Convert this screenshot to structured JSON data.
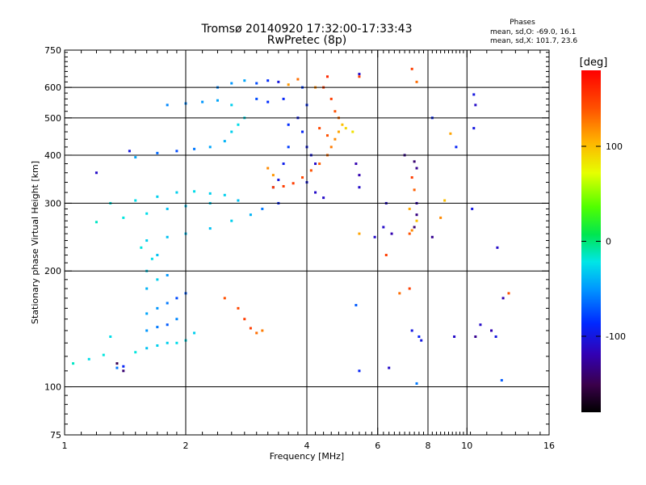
{
  "chart_data": {
    "type": "scatter",
    "title": "Tromsø 20140920 17:32:00-17:33:43",
    "subtitle": "RwPretec (8p)",
    "stats_title": "Phases",
    "stats_line1": "mean, sd,O: -69.0, 16.1",
    "stats_line2": "mean, sd,X: 101.7, 23.6",
    "xlabel": "Frequency [MHz]",
    "ylabel": "Stationary phase Virtual Height [km]",
    "xscale": "log",
    "yscale": "log",
    "xlim": [
      1,
      16
    ],
    "ylim": [
      75,
      750
    ],
    "x_ticks": [
      1,
      2,
      4,
      6,
      8,
      10,
      16
    ],
    "y_ticks": [
      75,
      100,
      200,
      300,
      400,
      500,
      600,
      750
    ],
    "x_grid": [
      2,
      4,
      6,
      8,
      10
    ],
    "y_grid": [
      100,
      200,
      300,
      400,
      500,
      600
    ],
    "colorbar": {
      "label": "[deg]",
      "range": [
        -180,
        180
      ],
      "ticks": [
        100,
        0,
        -100
      ],
      "colormap": "rainbow"
    },
    "series": [
      {
        "values": [
          [
            1.05,
            115,
            -15
          ],
          [
            1.15,
            118,
            -25
          ],
          [
            1.25,
            121,
            -20
          ],
          [
            1.3,
            135,
            -25
          ],
          [
            1.35,
            112,
            -60
          ],
          [
            1.4,
            113,
            -90
          ],
          [
            1.5,
            123,
            -20
          ],
          [
            1.6,
            126,
            -35
          ],
          [
            1.7,
            128,
            -30
          ],
          [
            1.8,
            130,
            -30
          ],
          [
            1.9,
            130,
            -25
          ],
          [
            2.0,
            132,
            -25
          ],
          [
            2.1,
            138,
            -30
          ],
          [
            1.6,
            140,
            -50
          ],
          [
            1.7,
            143,
            -60
          ],
          [
            1.8,
            145,
            -70
          ],
          [
            1.9,
            150,
            -55
          ],
          [
            1.6,
            155,
            -45
          ],
          [
            1.7,
            160,
            -50
          ],
          [
            1.8,
            165,
            -60
          ],
          [
            1.9,
            170,
            -75
          ],
          [
            2.0,
            175,
            -70
          ],
          [
            1.6,
            180,
            -40
          ],
          [
            1.7,
            190,
            -30
          ],
          [
            1.8,
            195,
            -50
          ],
          [
            1.6,
            200,
            -30
          ],
          [
            1.65,
            215,
            -25
          ],
          [
            1.7,
            220,
            -35
          ],
          [
            1.55,
            230,
            -20
          ],
          [
            1.6,
            240,
            -30
          ],
          [
            1.8,
            245,
            -35
          ],
          [
            2.0,
            250,
            -35
          ],
          [
            2.3,
            258,
            -35
          ],
          [
            2.6,
            270,
            -30
          ],
          [
            2.9,
            280,
            -40
          ],
          [
            3.1,
            290,
            -60
          ],
          [
            3.4,
            300,
            -90
          ],
          [
            1.2,
            268,
            -15
          ],
          [
            1.4,
            275,
            -20
          ],
          [
            1.6,
            282,
            -25
          ],
          [
            1.8,
            290,
            -35
          ],
          [
            2.0,
            295,
            -35
          ],
          [
            2.3,
            300,
            -30
          ],
          [
            2.7,
            305,
            -35
          ],
          [
            1.3,
            300,
            -20
          ],
          [
            1.5,
            305,
            -25
          ],
          [
            1.7,
            312,
            -30
          ],
          [
            1.9,
            320,
            -30
          ],
          [
            2.1,
            322,
            -25
          ],
          [
            2.3,
            318,
            -30
          ],
          [
            2.5,
            315,
            -30
          ],
          [
            1.5,
            395,
            -45
          ],
          [
            1.7,
            405,
            -65
          ],
          [
            1.9,
            410,
            -75
          ],
          [
            2.1,
            415,
            -60
          ],
          [
            2.3,
            420,
            -45
          ],
          [
            2.5,
            435,
            -40
          ],
          [
            2.6,
            460,
            -30
          ],
          [
            2.7,
            480,
            -25
          ],
          [
            2.8,
            500,
            -25
          ],
          [
            1.8,
            540,
            -55
          ],
          [
            2.0,
            545,
            -55
          ],
          [
            2.2,
            550,
            -50
          ],
          [
            2.4,
            555,
            -45
          ],
          [
            2.6,
            540,
            -30
          ],
          [
            2.4,
            600,
            -55
          ],
          [
            2.6,
            615,
            -50
          ],
          [
            2.8,
            625,
            -45
          ],
          [
            3.0,
            615,
            -75
          ],
          [
            3.2,
            625,
            -85
          ],
          [
            3.4,
            620,
            -100
          ],
          [
            3.0,
            560,
            -75
          ],
          [
            3.2,
            550,
            -85
          ],
          [
            3.5,
            560,
            -90
          ],
          [
            3.6,
            480,
            -85
          ],
          [
            3.6,
            420,
            -80
          ],
          [
            3.5,
            380,
            -95
          ],
          [
            3.4,
            345,
            -100
          ],
          [
            3.3,
            330,
            -90
          ],
          [
            3.8,
            500,
            -95
          ],
          [
            3.9,
            460,
            -90
          ],
          [
            4.0,
            420,
            -95
          ],
          [
            4.1,
            400,
            -100
          ],
          [
            4.2,
            380,
            -110
          ],
          [
            4.0,
            340,
            -100
          ],
          [
            3.9,
            600,
            -80
          ],
          [
            4.0,
            540,
            -85
          ]
        ]
      },
      {
        "values": [
          [
            2.5,
            170,
            140
          ],
          [
            2.7,
            160,
            145
          ],
          [
            2.8,
            150,
            150
          ],
          [
            2.9,
            142,
            150
          ],
          [
            3.0,
            138,
            130
          ],
          [
            3.1,
            140,
            125
          ],
          [
            3.3,
            330,
            150
          ],
          [
            3.5,
            332,
            150
          ],
          [
            3.7,
            338,
            150
          ],
          [
            3.9,
            350,
            145
          ],
          [
            4.1,
            365,
            140
          ],
          [
            4.3,
            380,
            135
          ],
          [
            4.5,
            400,
            130
          ],
          [
            4.6,
            420,
            125
          ],
          [
            4.7,
            440,
            120
          ],
          [
            4.8,
            460,
            110
          ],
          [
            4.9,
            480,
            100
          ],
          [
            5.0,
            470,
            90
          ],
          [
            5.2,
            460,
            85
          ],
          [
            4.4,
            600,
            150
          ],
          [
            4.5,
            640,
            160
          ],
          [
            4.6,
            560,
            150
          ],
          [
            4.7,
            520,
            140
          ],
          [
            4.8,
            500,
            130
          ],
          [
            4.3,
            470,
            145
          ],
          [
            4.5,
            450,
            140
          ],
          [
            3.2,
            370,
            120
          ],
          [
            3.3,
            355,
            115
          ],
          [
            3.6,
            610,
            115
          ],
          [
            3.8,
            630,
            130
          ],
          [
            4.2,
            600,
            120
          ],
          [
            5.4,
            640,
            150
          ],
          [
            7.3,
            670,
            150
          ],
          [
            7.5,
            620,
            130
          ],
          [
            7.3,
            350,
            150
          ],
          [
            7.4,
            325,
            135
          ],
          [
            7.2,
            290,
            110
          ],
          [
            7.5,
            270,
            100
          ],
          [
            7.3,
            255,
            120
          ],
          [
            7.2,
            250,
            140
          ],
          [
            6.3,
            220,
            150
          ],
          [
            7.2,
            180,
            150
          ],
          [
            6.8,
            175,
            130
          ],
          [
            8.6,
            275,
            120
          ],
          [
            9.1,
            455,
            110
          ],
          [
            8.8,
            305,
            100
          ],
          [
            12.7,
            175,
            140
          ],
          [
            5.4,
            250,
            110
          ]
        ]
      },
      {
        "values": [
          [
            5.4,
            650,
            -110
          ],
          [
            5.4,
            355,
            -120
          ],
          [
            5.9,
            245,
            -110
          ],
          [
            6.3,
            300,
            -110
          ],
          [
            6.2,
            260,
            -110
          ],
          [
            6.5,
            250,
            -120
          ],
          [
            7.0,
            400,
            -130
          ],
          [
            7.4,
            385,
            -140
          ],
          [
            7.5,
            370,
            -130
          ],
          [
            7.5,
            300,
            -120
          ],
          [
            7.5,
            280,
            -135
          ],
          [
            7.4,
            260,
            -140
          ],
          [
            8.2,
            500,
            -90
          ],
          [
            8.2,
            245,
            -130
          ],
          [
            9.4,
            420,
            -90
          ],
          [
            10.4,
            575,
            -100
          ],
          [
            10.5,
            540,
            -110
          ],
          [
            10.4,
            470,
            -100
          ],
          [
            10.3,
            290,
            -100
          ],
          [
            11.9,
            230,
            -110
          ],
          [
            12.3,
            170,
            -120
          ],
          [
            7.3,
            140,
            -100
          ],
          [
            7.6,
            135,
            -90
          ],
          [
            9.3,
            135,
            -110
          ],
          [
            10.5,
            135,
            -130
          ],
          [
            10.8,
            145,
            -110
          ],
          [
            11.5,
            140,
            -120
          ],
          [
            11.8,
            135,
            -100
          ],
          [
            5.3,
            163,
            -70
          ],
          [
            5.4,
            110,
            -90
          ],
          [
            6.4,
            112,
            -110
          ],
          [
            7.5,
            102,
            -60
          ],
          [
            7.7,
            132,
            -100
          ],
          [
            12.2,
            104,
            -70
          ],
          [
            1.35,
            115,
            -150
          ],
          [
            1.4,
            110,
            -140
          ],
          [
            1.2,
            360,
            -110
          ],
          [
            1.45,
            410,
            -100
          ],
          [
            4.2,
            320,
            -110
          ],
          [
            4.4,
            310,
            -110
          ],
          [
            5.3,
            380,
            -120
          ],
          [
            5.4,
            330,
            -110
          ]
        ]
      }
    ]
  }
}
